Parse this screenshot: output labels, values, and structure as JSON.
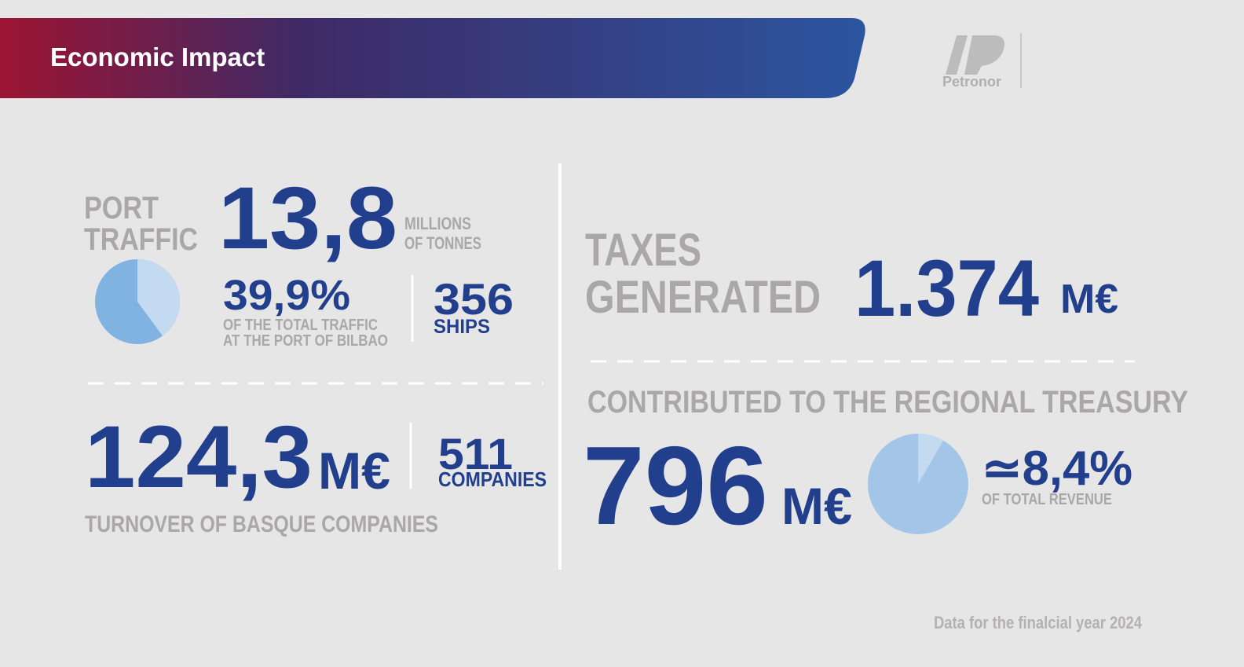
{
  "header": {
    "title": "Economic Impact",
    "logo": "Petronor"
  },
  "port_traffic": {
    "title_line1": "PORT",
    "title_line2": "TRAFFIC",
    "value": "13,8",
    "unit_line1": "MILLIONS",
    "unit_line2": "OF TONNES",
    "share": {
      "value": 39.9,
      "label": "39,9%",
      "color": "#c3daf0",
      "rest_color": "#80b2e2"
    },
    "share_text_line1": "OF THE TOTAL TRAFFIC",
    "share_text_line2": "AT THE PORT OF BILBAO",
    "ships": {
      "value": "356",
      "label": "SHIPS"
    }
  },
  "turnover": {
    "value": "124,3",
    "unit": "M€",
    "companies": {
      "value": "511",
      "label": "COMPANIES"
    },
    "caption": "TURNOVER OF BASQUE COMPANIES"
  },
  "taxes": {
    "title_line1": "TAXES",
    "title_line2": "GENERATED",
    "value": "1.374",
    "unit": "M€"
  },
  "treasury": {
    "caption": "CONTRIBUTED TO THE REGIONAL TREASURY",
    "value": "796",
    "unit": "M€",
    "share": {
      "value": 8.4,
      "label": "≃8,4%",
      "color": "#c3daf0",
      "rest_color": "#a3c6e8"
    },
    "share_text": "OF TOTAL REVENUE"
  },
  "footer": {
    "note": "Data for the finalcial year 2024"
  }
}
